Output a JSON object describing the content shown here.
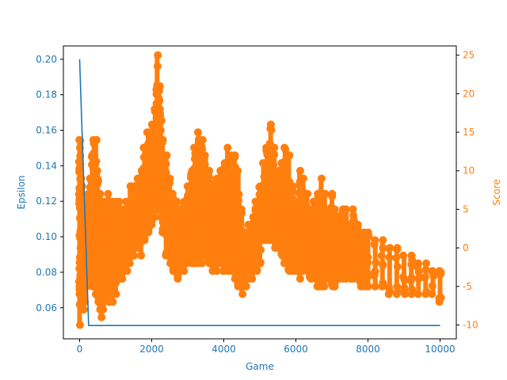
{
  "chart_data": {
    "type": "line+scatter",
    "xlabel": "Game",
    "ylabel_left": "Epsilon",
    "ylabel_right": "Score",
    "xlim": [
      -450,
      10450
    ],
    "ylim_left": [
      0.0425,
      0.2075
    ],
    "ylim_right": [
      -11.8,
      26.2
    ],
    "x_ticks": [
      0,
      2000,
      4000,
      6000,
      8000,
      10000
    ],
    "y_left_ticks": [
      0.06,
      0.08,
      0.1,
      0.12,
      0.14,
      0.16,
      0.18,
      0.2
    ],
    "y_right_ticks": [
      -10,
      -5,
      0,
      5,
      10,
      15,
      20,
      25
    ],
    "colors": {
      "epsilon": "#1f77b4",
      "score": "#ff7f0e"
    },
    "grid": false,
    "series": [
      {
        "axis": "left",
        "kind": "line",
        "x": [
          0,
          250,
          10000
        ],
        "values": [
          0.2,
          0.05,
          0.05
        ]
      },
      {
        "axis": "right",
        "kind": "scatter",
        "x": [
          0,
          20,
          40,
          60,
          80,
          100,
          150,
          200,
          250,
          300,
          350,
          400,
          450,
          500,
          550,
          600,
          650,
          700,
          800,
          900,
          1000,
          1100,
          1200,
          1300,
          1400,
          1500,
          1600,
          1700,
          1800,
          1900,
          2000,
          2100,
          2150,
          2200,
          2250,
          2300,
          2400,
          2500,
          2600,
          2700,
          2800,
          2900,
          3000,
          3100,
          3200,
          3300,
          3400,
          3500,
          3600,
          3700,
          3800,
          3900,
          4000,
          4100,
          4200,
          4300,
          4400,
          4500,
          4600,
          4700,
          4800,
          4900,
          5000,
          5100,
          5200,
          5300,
          5400,
          5500,
          5600,
          5700,
          5800,
          5900,
          6000,
          6100,
          6200,
          6300,
          6400,
          6500,
          6600,
          6700,
          6800,
          6900,
          7000,
          7100,
          7200,
          7300,
          7400,
          7500,
          7600,
          7700,
          7800,
          7900,
          8000,
          8200,
          8400,
          8600,
          8800,
          9000,
          9200,
          9400,
          9600,
          9800,
          10000
        ],
        "low": [
          -10,
          -6,
          -6,
          -7,
          -8,
          -8,
          -7,
          -5,
          -4,
          -3,
          -5,
          -5,
          -6,
          -7,
          -8,
          -9,
          -8,
          -6,
          -7,
          -7,
          -6,
          -4,
          -4,
          -3,
          -2,
          -1,
          0,
          -1,
          1,
          2,
          3,
          4,
          5,
          5,
          4,
          2,
          -1,
          -2,
          -3,
          -4,
          -3,
          -3,
          -2,
          -2,
          -2,
          -2,
          -2,
          -1,
          -2,
          -3,
          -3,
          -2,
          -3,
          -3,
          -3,
          -4,
          -5,
          -6,
          -5,
          -4,
          -4,
          -3,
          -2,
          1,
          1,
          1,
          0,
          0,
          -1,
          -2,
          -3,
          -3,
          -3,
          -4,
          -3,
          -3,
          -4,
          -4,
          -5,
          -5,
          -5,
          -4,
          -5,
          -5,
          -4,
          -4,
          -4,
          -4,
          -4,
          -4,
          -5,
          -5,
          -5,
          -5,
          -5,
          -6,
          -6,
          -6,
          -6,
          -6,
          -6,
          -6,
          -7
        ],
        "high": [
          14,
          13,
          9,
          8,
          6,
          6,
          5,
          4,
          7,
          9,
          12,
          14,
          14,
          10,
          7,
          6,
          5,
          6,
          7,
          6,
          6,
          6,
          5,
          6,
          8,
          8,
          9,
          10,
          13,
          15,
          16,
          18,
          25,
          21,
          18,
          14,
          12,
          9,
          7,
          6,
          5,
          6,
          8,
          10,
          13,
          15,
          14,
          12,
          10,
          8,
          9,
          10,
          11,
          13,
          12,
          12,
          10,
          5,
          2,
          3,
          4,
          6,
          8,
          11,
          13,
          16,
          13,
          10,
          11,
          13,
          12,
          8,
          6,
          10,
          9,
          7,
          5,
          6,
          7,
          9,
          7,
          5,
          7,
          5,
          4,
          5,
          5,
          3,
          5,
          3,
          2,
          2,
          2,
          1,
          1,
          0,
          0,
          -1,
          -1,
          -2,
          -2,
          -3,
          -3
        ]
      }
    ]
  }
}
